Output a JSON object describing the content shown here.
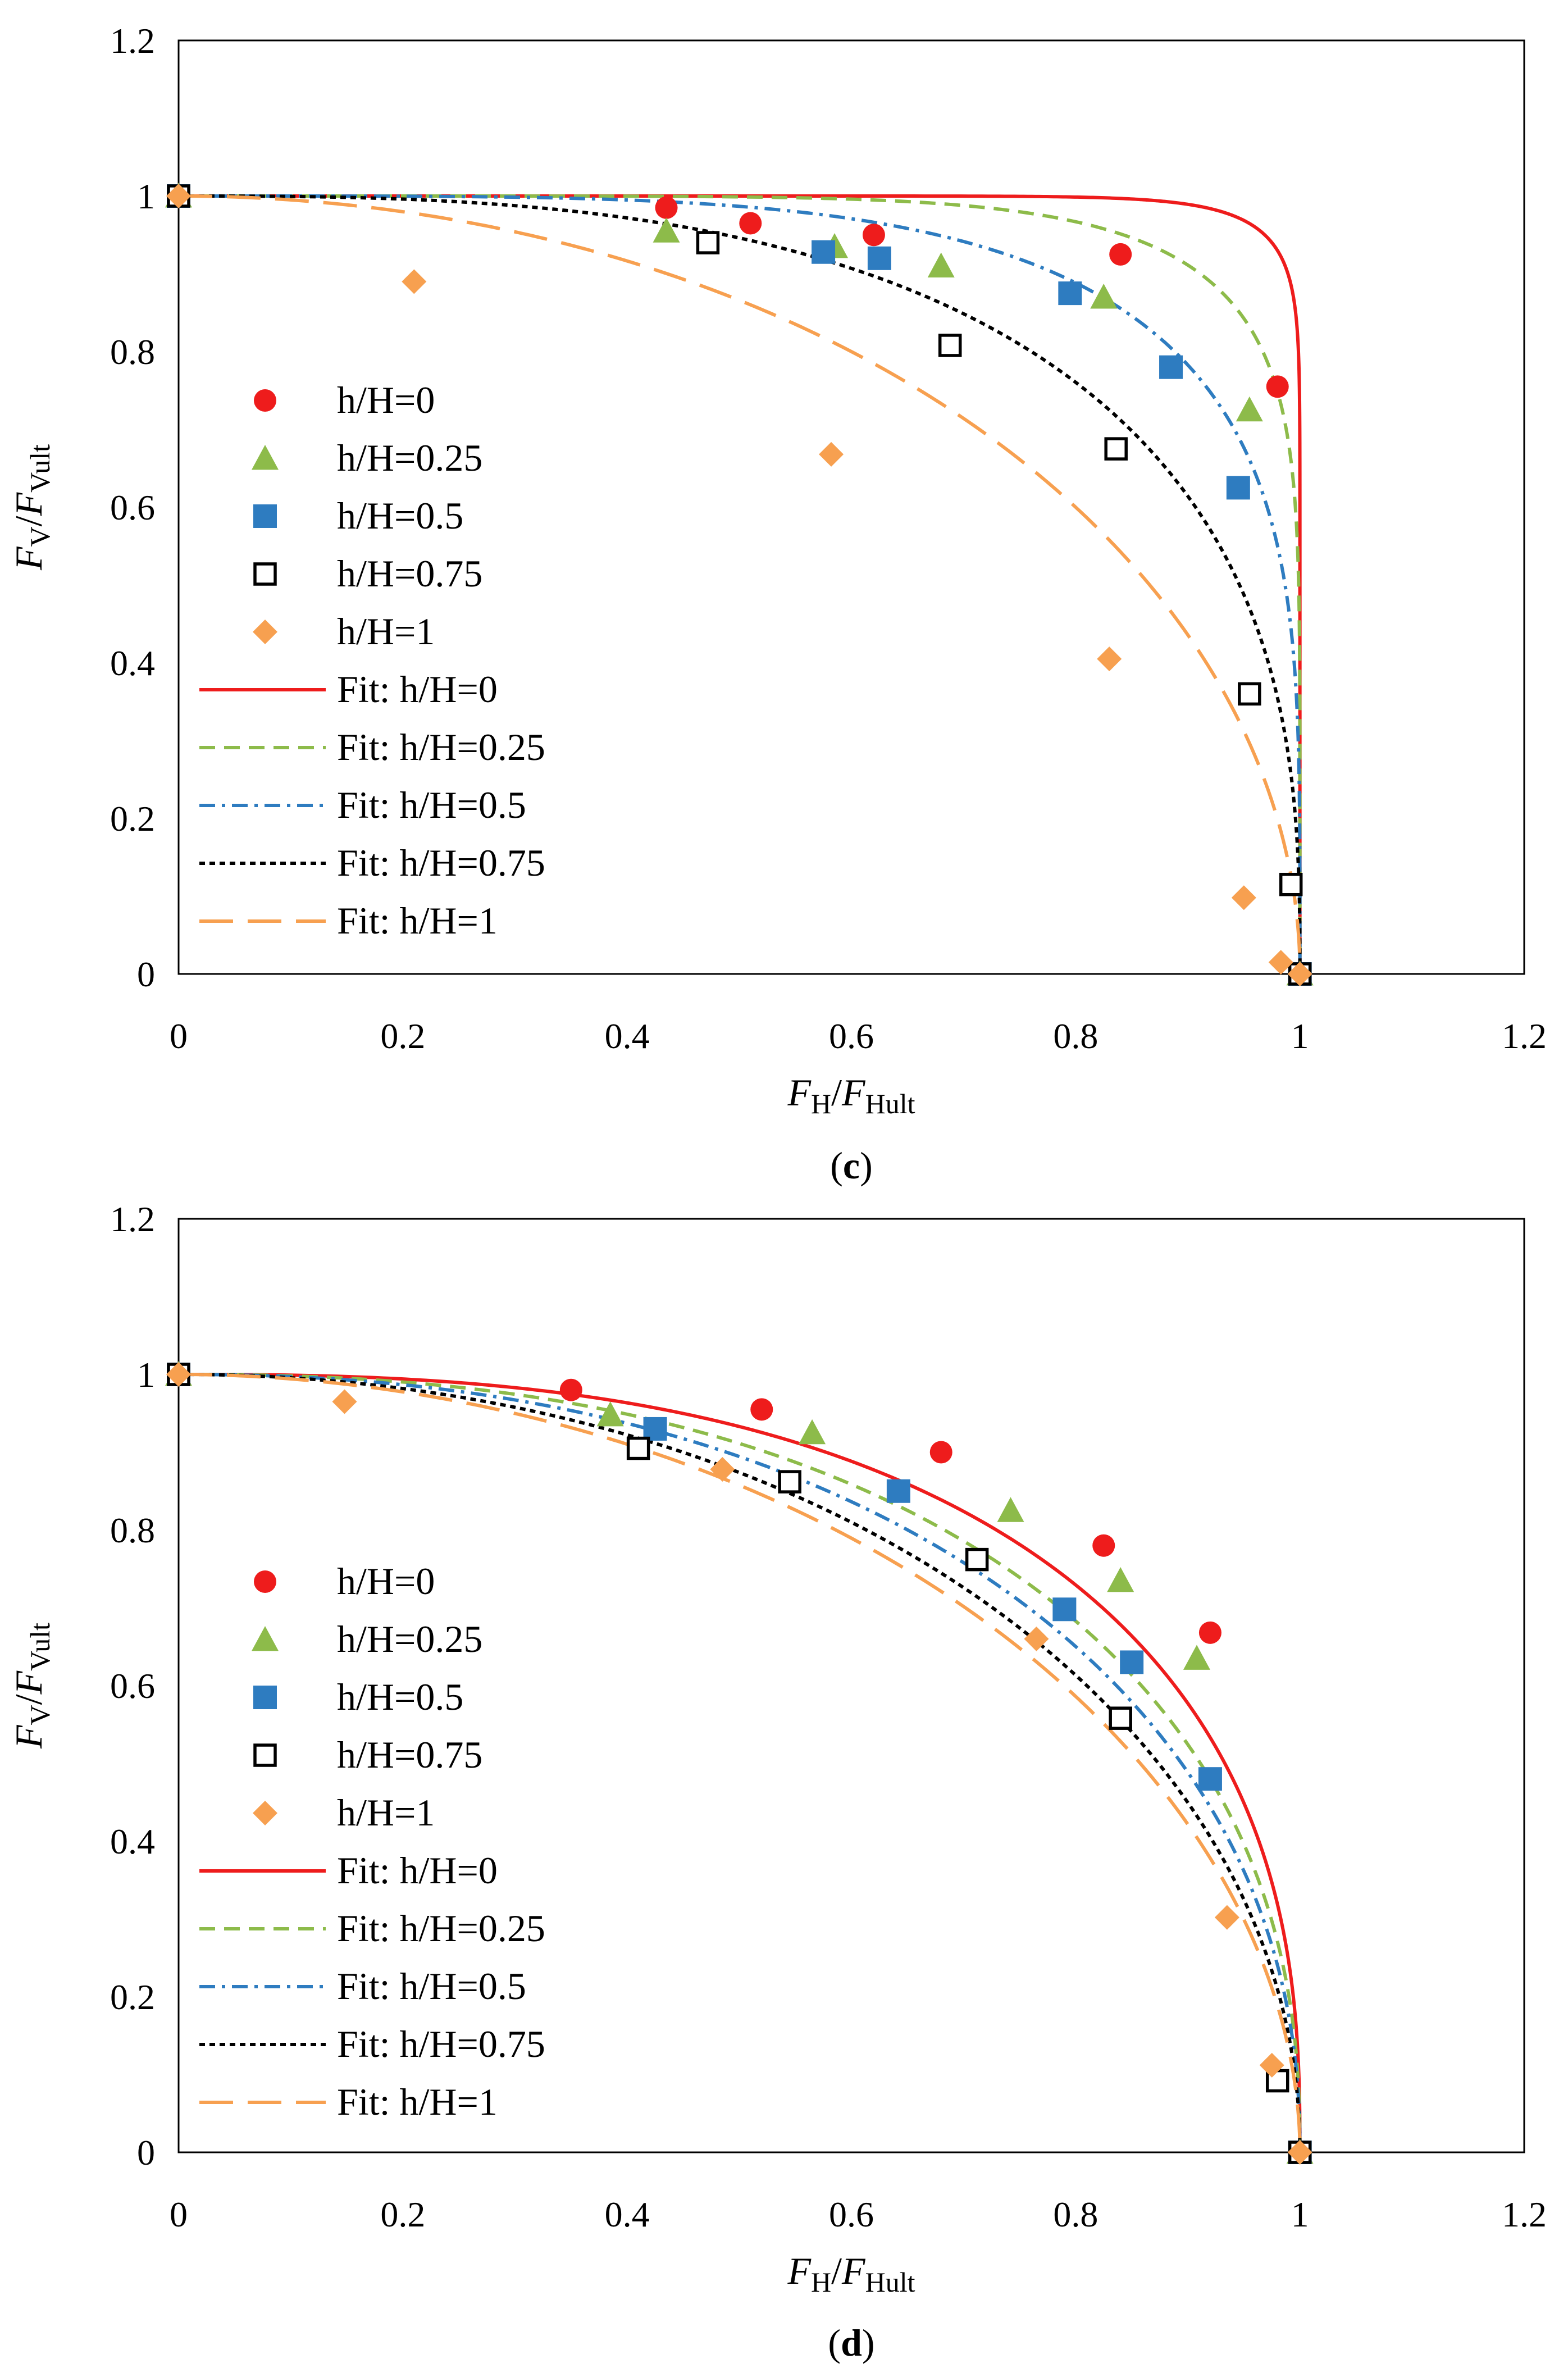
{
  "chart_data": [
    {
      "type": "scatter",
      "panel": "c",
      "panel_label": "(c)",
      "xlabel": "FH/FHult",
      "ylabel": "FV/FVult",
      "xlabel_parts": {
        "main": "F",
        "sub": "H",
        "sep": "/",
        "main2": "F",
        "sub2": "Hult"
      },
      "ylabel_parts": {
        "main": "F",
        "sub": "V",
        "sep": "/",
        "main2": "F",
        "sub2": "Vult"
      },
      "xlim": [
        0,
        1.2
      ],
      "ylim": [
        0,
        1.2
      ],
      "xticks": [
        0,
        0.2,
        0.4,
        0.6,
        0.8,
        1,
        1.2
      ],
      "yticks": [
        0,
        0.2,
        0.4,
        0.6,
        0.8,
        1,
        1.2
      ],
      "xtick_labels": [
        "0",
        "0.2",
        "0.4",
        "0.6",
        "0.8",
        "1",
        "1.2"
      ],
      "ytick_labels": [
        "0",
        "0.2",
        "0.4",
        "0.6",
        "0.8",
        "1",
        "1.2"
      ],
      "grid": false,
      "legend_position": "left-middle",
      "series": [
        {
          "name": "h/H=0",
          "kind": "scatter",
          "marker": "circle",
          "color": "#ee1c1c",
          "x": [
            0,
            0.435,
            0.51,
            0.62,
            0.84,
            0.98,
            1.0
          ],
          "y": [
            1.0,
            0.985,
            0.965,
            0.95,
            0.925,
            0.755,
            0.0
          ]
        },
        {
          "name": "h/H=0.25",
          "kind": "scatter",
          "marker": "triangle",
          "color": "#8dbb4a",
          "x": [
            0,
            0.435,
            0.585,
            0.68,
            0.825,
            0.955,
            1.0
          ],
          "y": [
            1.0,
            0.955,
            0.935,
            0.91,
            0.87,
            0.725,
            0.0
          ]
        },
        {
          "name": "h/H=0.5",
          "kind": "scatter",
          "marker": "square",
          "color": "#2e7cc0",
          "x": [
            0,
            0.575,
            0.625,
            0.795,
            0.885,
            0.945,
            1.0
          ],
          "y": [
            1.0,
            0.928,
            0.92,
            0.875,
            0.78,
            0.625,
            0.0
          ]
        },
        {
          "name": "h/H=0.75",
          "kind": "scatter",
          "marker": "open-square",
          "color": "#000000",
          "x": [
            0,
            0.472,
            0.688,
            0.836,
            0.955,
            0.992,
            1.0
          ],
          "y": [
            1.0,
            0.94,
            0.808,
            0.675,
            0.36,
            0.115,
            0.0
          ]
        },
        {
          "name": "h/H=1",
          "kind": "scatter",
          "marker": "diamond",
          "color": "#f7a050",
          "x": [
            0,
            0.21,
            0.582,
            0.83,
            0.95,
            0.983,
            1.0
          ],
          "y": [
            1.0,
            0.89,
            0.668,
            0.405,
            0.098,
            0.015,
            0.0
          ]
        },
        {
          "name": "Fit: h/H=0",
          "kind": "line",
          "dash": "solid",
          "color": "#ee1c1c",
          "exponent": 17
        },
        {
          "name": "Fit: h/H=0.25",
          "kind": "line",
          "dash": "dash",
          "color": "#8dbb4a",
          "exponent": 7
        },
        {
          "name": "Fit: h/H=0.5",
          "kind": "line",
          "dash": "dashdot",
          "color": "#2e7cc0",
          "exponent": 4.2
        },
        {
          "name": "Fit: h/H=0.75",
          "kind": "line",
          "dash": "dot",
          "color": "#000000",
          "exponent": 2.8
        },
        {
          "name": "Fit: h/H=1",
          "kind": "line",
          "dash": "longdash",
          "color": "#f7a050",
          "exponent": 2.0
        }
      ]
    },
    {
      "type": "scatter",
      "panel": "d",
      "panel_label": "(d)",
      "xlabel": "FH/FHult",
      "ylabel": "FV/FVult",
      "xlabel_parts": {
        "main": "F",
        "sub": "H",
        "sep": "/",
        "main2": "F",
        "sub2": "Hult"
      },
      "ylabel_parts": {
        "main": "F",
        "sub": "V",
        "sep": "/",
        "main2": "F",
        "sub2": "Vult"
      },
      "xlim": [
        0,
        1.2
      ],
      "ylim": [
        0,
        1.2
      ],
      "xticks": [
        0,
        0.2,
        0.4,
        0.6,
        0.8,
        1,
        1.2
      ],
      "yticks": [
        0,
        0.2,
        0.4,
        0.6,
        0.8,
        1,
        1.2
      ],
      "xtick_labels": [
        "0",
        "0.2",
        "0.4",
        "0.6",
        "0.8",
        "1",
        "1.2"
      ],
      "ytick_labels": [
        "0",
        "0.2",
        "0.4",
        "0.6",
        "0.8",
        "1",
        "1.2"
      ],
      "grid": false,
      "legend_position": "left-bottom",
      "series": [
        {
          "name": "h/H=0",
          "kind": "scatter",
          "marker": "circle",
          "color": "#ee1c1c",
          "x": [
            0,
            0.35,
            0.52,
            0.68,
            0.825,
            0.92,
            1.0
          ],
          "y": [
            1.0,
            0.98,
            0.955,
            0.9,
            0.78,
            0.668,
            0.0
          ]
        },
        {
          "name": "h/H=0.25",
          "kind": "scatter",
          "marker": "triangle",
          "color": "#8dbb4a",
          "x": [
            0,
            0.385,
            0.565,
            0.742,
            0.84,
            0.908,
            1.0
          ],
          "y": [
            1.0,
            0.948,
            0.925,
            0.825,
            0.735,
            0.635,
            0.0
          ]
        },
        {
          "name": "h/H=0.5",
          "kind": "scatter",
          "marker": "square",
          "color": "#2e7cc0",
          "x": [
            0,
            0.425,
            0.642,
            0.79,
            0.85,
            0.92,
            1.0
          ],
          "y": [
            1.0,
            0.93,
            0.85,
            0.698,
            0.63,
            0.48,
            0.0
          ]
        },
        {
          "name": "h/H=0.75",
          "kind": "scatter",
          "marker": "open-square",
          "color": "#000000",
          "x": [
            0,
            0.41,
            0.545,
            0.712,
            0.84,
            0.98,
            1.0
          ],
          "y": [
            1.0,
            0.905,
            0.862,
            0.762,
            0.558,
            0.092,
            0.0
          ]
        },
        {
          "name": "h/H=1",
          "kind": "scatter",
          "marker": "diamond",
          "color": "#f7a050",
          "x": [
            0,
            0.148,
            0.485,
            0.765,
            0.935,
            0.975,
            1.0
          ],
          "y": [
            1.0,
            0.965,
            0.878,
            0.66,
            0.302,
            0.112,
            0.0
          ]
        },
        {
          "name": "Fit: h/H=0",
          "kind": "line",
          "dash": "solid",
          "color": "#ee1c1c",
          "exponent": 2.6
        },
        {
          "name": "Fit: h/H=0.25",
          "kind": "line",
          "dash": "dash",
          "color": "#8dbb4a",
          "exponent": 2.35
        },
        {
          "name": "Fit: h/H=0.5",
          "kind": "line",
          "dash": "dashdot",
          "color": "#2e7cc0",
          "exponent": 2.2
        },
        {
          "name": "Fit: h/H=0.75",
          "kind": "line",
          "dash": "dot",
          "color": "#000000",
          "exponent": 2.05
        },
        {
          "name": "Fit: h/H=1",
          "kind": "line",
          "dash": "longdash",
          "color": "#f7a050",
          "exponent": 1.95
        }
      ]
    }
  ]
}
